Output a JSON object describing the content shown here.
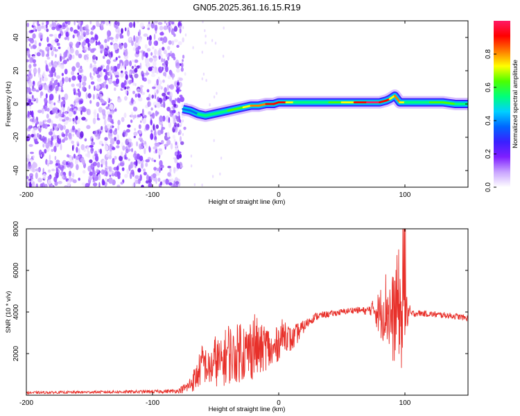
{
  "figure_title": "GN05.2025.361.16.15.R19",
  "colors": {
    "snr_line": "#e8302a",
    "noise": "#7a2ff0",
    "frame": "#000000"
  },
  "colormap": [
    "#ffffff",
    "#c9a4ff",
    "#7f1fff",
    "#3a20ff",
    "#0066ff",
    "#00d0ff",
    "#00ff7a",
    "#4cff00",
    "#ffff00",
    "#ff7a00",
    "#ff0000",
    "#ff1a66"
  ],
  "chart_data": [
    {
      "type": "heatmap",
      "title": "GN05.2025.361.16.15.R19",
      "xlabel": "Height of straight line (km)",
      "ylabel": "Frequency (Hz)",
      "xlim": [
        -200,
        150
      ],
      "ylim": [
        -50,
        50
      ],
      "xticks": [
        -200,
        -100,
        0,
        100
      ],
      "yticks": [
        -40,
        -20,
        0,
        20,
        40
      ],
      "noise_region_x": [
        -200,
        -76
      ],
      "ridge": {
        "x": [
          -76,
          -70,
          -64,
          -58,
          -52,
          -46,
          -40,
          -34,
          -28,
          -22,
          -16,
          -10,
          -4,
          0,
          6,
          12,
          20,
          30,
          40,
          50,
          60,
          70,
          80,
          85,
          88,
          92,
          96,
          100,
          110,
          120,
          130,
          140,
          150
        ],
        "y": [
          -3,
          -4,
          -6,
          -7,
          -6,
          -5,
          -4,
          -3,
          -2,
          -1,
          -1,
          0,
          0,
          1,
          1,
          1,
          1,
          1,
          1,
          1,
          1,
          1,
          1,
          2,
          3,
          5,
          1,
          1,
          1,
          1,
          1,
          0,
          0
        ],
        "amplitude": [
          0.3,
          0.35,
          0.45,
          0.55,
          0.5,
          0.55,
          0.6,
          0.65,
          0.7,
          0.75,
          0.8,
          0.85,
          0.9,
          0.95,
          0.95,
          0.55,
          0.6,
          0.55,
          0.6,
          0.65,
          0.8,
          0.95,
          0.98,
          0.9,
          0.85,
          0.6,
          0.95,
          0.5,
          0.55,
          0.6,
          0.65,
          0.6,
          0.5
        ]
      },
      "colorbar": {
        "label": "Normalized spectral amplitude",
        "range": [
          0,
          1
        ],
        "ticks": [
          "0.0",
          "0.2",
          "0.4",
          "0.6",
          "0.8"
        ]
      }
    },
    {
      "type": "line",
      "xlabel": "Height of straight line (km)",
      "ylabel": "SNR (10 * v/v)",
      "xlim": [
        -200,
        150
      ],
      "ylim": [
        0,
        8000
      ],
      "xticks": [
        -200,
        -100,
        0,
        100
      ],
      "yticks": [
        2000,
        4000,
        6000,
        8000
      ],
      "series": [
        {
          "name": "SNR",
          "x": [
            -200,
            -150,
            -100,
            -80,
            -72,
            -65,
            -60,
            -55,
            -50,
            -45,
            -40,
            -35,
            -30,
            -25,
            -20,
            -15,
            -10,
            -5,
            0,
            5,
            10,
            15,
            20,
            25,
            30,
            40,
            50,
            60,
            70,
            75,
            80,
            85,
            90,
            95,
            98,
            100,
            105,
            110,
            120,
            130,
            140,
            150
          ],
          "y": [
            120,
            150,
            170,
            200,
            400,
            900,
            1600,
            1200,
            1700,
            1500,
            2100,
            1800,
            2300,
            2000,
            2500,
            2100,
            2400,
            2000,
            2600,
            3000,
            2600,
            3000,
            3300,
            3600,
            3800,
            3900,
            4000,
            4100,
            4050,
            4200,
            3900,
            4300,
            3600,
            4500,
            3200,
            4000,
            3900,
            3950,
            3900,
            3850,
            3800,
            3700
          ],
          "spread": [
            60,
            60,
            80,
            100,
            300,
            700,
            1000,
            800,
            1300,
            1100,
            1600,
            1200,
            1700,
            1300,
            1800,
            1200,
            1200,
            900,
            900,
            800,
            600,
            500,
            300,
            200,
            200,
            150,
            150,
            150,
            200,
            400,
            1200,
            1800,
            2200,
            2600,
            2400,
            1200,
            200,
            150,
            150,
            150,
            150,
            150
          ]
        }
      ]
    }
  ]
}
